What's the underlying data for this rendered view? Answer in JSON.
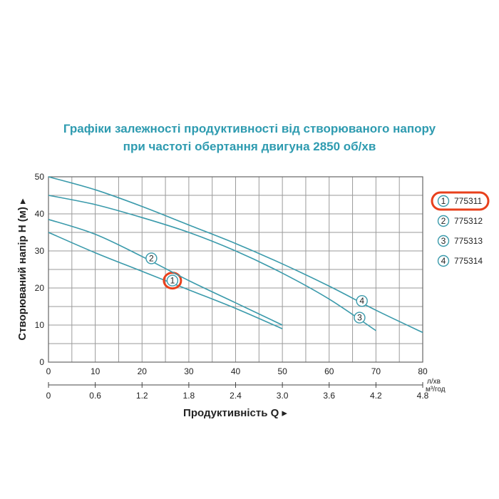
{
  "title_line1": "Графіки залежності продуктивності від створюваного напору",
  "title_line2": "при частоті обертання двигуна 2850 об/хв",
  "chart_data": {
    "type": "line",
    "xlabel": "Продуктивність  Q",
    "ylabel": "Створюваний напір H (м)",
    "x_unit": "л/хв",
    "x2_unit": "м³/год",
    "xlim": [
      0,
      80
    ],
    "ylim": [
      0,
      50
    ],
    "x_ticks": [
      "0",
      "10",
      "20",
      "30",
      "40",
      "50",
      "60",
      "70",
      "80"
    ],
    "x2_ticks": [
      "0",
      "0.6",
      "1.2",
      "1.8",
      "2.4",
      "3.0",
      "3.6",
      "4.2",
      "4.8"
    ],
    "y_ticks": [
      "0",
      "10",
      "20",
      "30",
      "40",
      "50"
    ],
    "grid": true,
    "legend_position": "right",
    "series": [
      {
        "name": "775311",
        "marker": "1",
        "highlighted": true,
        "marker_at": [
          26.5,
          22
        ],
        "x": [
          0,
          10,
          20,
          30,
          40,
          50
        ],
        "y": [
          35,
          29.5,
          24.5,
          19.5,
          14.5,
          9
        ]
      },
      {
        "name": "775312",
        "marker": "2",
        "highlighted": false,
        "marker_at": [
          22,
          28
        ],
        "x": [
          0,
          10,
          20,
          30,
          40,
          50
        ],
        "y": [
          38.5,
          34.5,
          28.5,
          22,
          16,
          10
        ]
      },
      {
        "name": "775313",
        "marker": "3",
        "highlighted": false,
        "marker_at": [
          66.5,
          12
        ],
        "x": [
          0,
          10,
          20,
          30,
          40,
          50,
          60,
          70
        ],
        "y": [
          45,
          42.5,
          39,
          35,
          30,
          24,
          17,
          8.5
        ]
      },
      {
        "name": "775314",
        "marker": "4",
        "highlighted": false,
        "marker_at": [
          67,
          16.5
        ],
        "x": [
          0,
          10,
          20,
          30,
          40,
          50,
          60,
          70,
          80
        ],
        "y": [
          50,
          46.5,
          42,
          37,
          32,
          26.5,
          20.5,
          14,
          8
        ]
      }
    ]
  },
  "colors": {
    "title": "#2e9bb0",
    "curve": "#3a9aab",
    "highlight": "#e8401c",
    "grid": "#9a9a9a"
  }
}
